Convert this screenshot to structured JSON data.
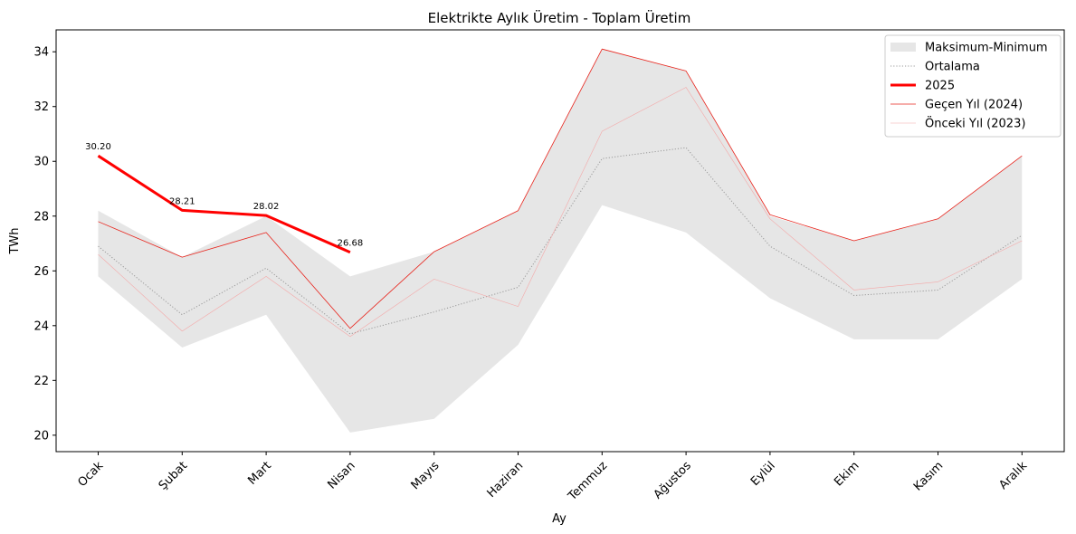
{
  "chart_data": {
    "type": "line",
    "title": "Elektrikte Aylık Üretim - Toplam Üretim",
    "xlabel": "Ay",
    "ylabel": "TWh",
    "ylim": [
      19.4,
      34.8
    ],
    "yticks": [
      20,
      22,
      24,
      26,
      28,
      30,
      32,
      34
    ],
    "categories": [
      "Ocak",
      "Şubat",
      "Mart",
      "Nisan",
      "Mayıs",
      "Haziran",
      "Temmuz",
      "Ağustos",
      "Eylül",
      "Ekim",
      "Kasım",
      "Aralık"
    ],
    "band": {
      "name": "Maksimum-Minimum",
      "color": "#e6e6e6",
      "max": [
        28.2,
        26.5,
        28.0,
        25.8,
        26.7,
        28.2,
        34.1,
        33.3,
        28.0,
        27.1,
        27.9,
        30.2
      ],
      "min": [
        25.8,
        23.2,
        24.4,
        20.1,
        20.6,
        23.3,
        28.4,
        27.4,
        25.0,
        23.5,
        23.5,
        25.7
      ]
    },
    "series": [
      {
        "name": "Ortalama",
        "color": "#999999",
        "style": "dotted",
        "values": [
          26.9,
          24.4,
          26.1,
          23.7,
          24.5,
          25.4,
          30.1,
          30.5,
          26.9,
          25.1,
          25.3,
          27.3
        ]
      },
      {
        "name": "2025",
        "color": "#ff0000",
        "style": "bold",
        "values": [
          30.2,
          28.21,
          28.02,
          26.68,
          null,
          null,
          null,
          null,
          null,
          null,
          null,
          null
        ],
        "labels": [
          "30.20",
          "28.21",
          "28.02",
          "26.68"
        ]
      },
      {
        "name": "Geçen Yıl (2024)",
        "color": "#e8241c",
        "style": "thin",
        "values": [
          27.8,
          26.5,
          27.4,
          23.9,
          26.7,
          28.2,
          34.1,
          33.3,
          28.05,
          27.1,
          27.9,
          30.2
        ]
      },
      {
        "name": "Önceki Yıl (2023)",
        "color": "#f4a8a8",
        "style": "faint",
        "values": [
          26.6,
          23.8,
          25.8,
          23.6,
          25.7,
          24.7,
          31.1,
          32.7,
          27.9,
          25.3,
          25.6,
          27.1
        ]
      }
    ],
    "legend_position": "top-right",
    "grid": false
  }
}
